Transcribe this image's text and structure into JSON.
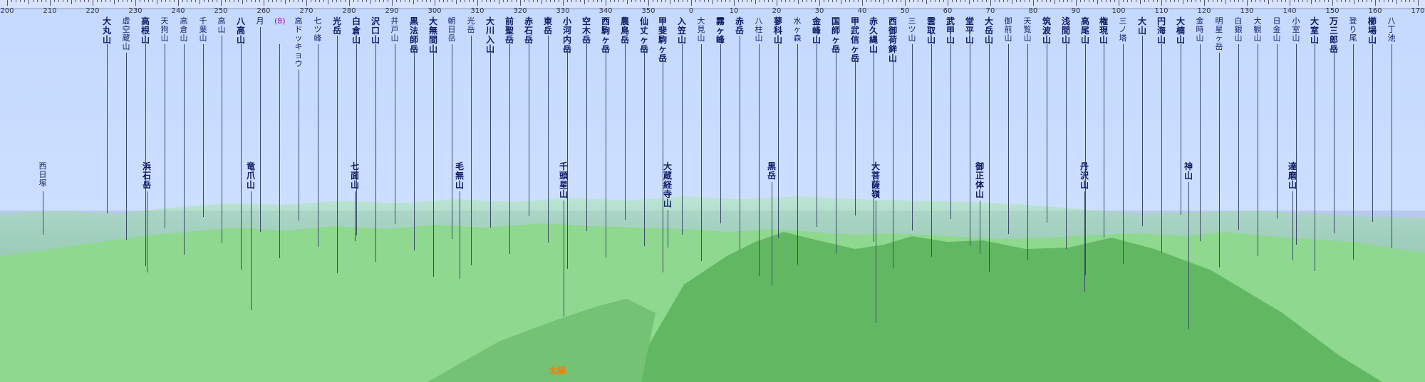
{
  "scale": {
    "degrees": [
      "200",
      "210",
      "220",
      "230",
      "240",
      "250",
      "260",
      "270",
      "280",
      "290",
      "300",
      "310",
      "320",
      "330",
      "340",
      "350",
      "0",
      "10",
      "20",
      "30",
      "40",
      "50",
      "60",
      "70",
      "80",
      "90",
      "100",
      "110",
      "120",
      "130",
      "140",
      "150",
      "160",
      "170"
    ]
  },
  "sun_label": "太陽",
  "peaks": [
    {
      "name": "大丸山",
      "style": "bold"
    },
    {
      "name": "虚空蔵山"
    },
    {
      "name": "高根山",
      "style": "bold"
    },
    {
      "name": "天狗山"
    },
    {
      "name": "高倉山"
    },
    {
      "name": "千葉山"
    },
    {
      "name": "高山"
    },
    {
      "name": "八高山",
      "style": "bold"
    },
    {
      "name": "月"
    },
    {
      "name": "(8)",
      "style": "alt"
    },
    {
      "name": "高ドッキョウ"
    },
    {
      "name": "七ツ峰"
    },
    {
      "name": "光岳",
      "style": "bold"
    },
    {
      "name": "白倉山",
      "style": "bold"
    },
    {
      "name": "沢口山",
      "style": "bold"
    },
    {
      "name": "井戸山"
    },
    {
      "name": "黒法師岳",
      "style": "bold"
    },
    {
      "name": "大無間山",
      "style": "bold"
    },
    {
      "name": "朝日岳"
    },
    {
      "name": "光岳"
    },
    {
      "name": "大川入山",
      "style": "bold"
    },
    {
      "name": "前聖岳",
      "style": "bold"
    },
    {
      "name": "赤石岳",
      "style": "bold"
    },
    {
      "name": "東岳",
      "style": "bold"
    },
    {
      "name": "小河内岳",
      "style": "bold"
    },
    {
      "name": "空木岳",
      "style": "bold"
    },
    {
      "name": "西駒ヶ岳",
      "style": "bold"
    },
    {
      "name": "農鳥岳",
      "style": "bold"
    },
    {
      "name": "仙丈ヶ岳",
      "style": "bold"
    },
    {
      "name": "甲斐駒ヶ岳",
      "style": "bold"
    },
    {
      "name": "入笠山",
      "style": "bold"
    },
    {
      "name": "大見山"
    },
    {
      "name": "霧ヶ峰",
      "style": "bold"
    },
    {
      "name": "赤岳",
      "style": "bold"
    },
    {
      "name": "八柱山"
    },
    {
      "name": "蓼科山",
      "style": "bold"
    },
    {
      "name": "水ヶ森"
    },
    {
      "name": "金峰山",
      "style": "bold"
    },
    {
      "name": "国師ヶ岳",
      "style": "bold"
    },
    {
      "name": "甲武信ヶ岳",
      "style": "bold"
    },
    {
      "name": "赤久縄山",
      "style": "bold"
    },
    {
      "name": "西御荷鉾山",
      "style": "bold"
    },
    {
      "name": "三ツ山"
    },
    {
      "name": "雲取山",
      "style": "bold"
    },
    {
      "name": "武甲山",
      "style": "bold"
    },
    {
      "name": "堂平山",
      "style": "bold"
    },
    {
      "name": "大岳山",
      "style": "bold"
    },
    {
      "name": "御前山"
    },
    {
      "name": "天覧山"
    },
    {
      "name": "筑波山",
      "style": "bold"
    },
    {
      "name": "浅間山",
      "style": "bold"
    },
    {
      "name": "高尾山",
      "style": "bold"
    },
    {
      "name": "権現山",
      "style": "bold"
    },
    {
      "name": "三ノ塔"
    },
    {
      "name": "大山",
      "style": "bold"
    },
    {
      "name": "円海山",
      "style": "bold"
    },
    {
      "name": "大楠山",
      "style": "bold"
    },
    {
      "name": "金時山"
    },
    {
      "name": "明星ヶ岳"
    },
    {
      "name": "白銀山"
    },
    {
      "name": "大観山"
    },
    {
      "name": "日金山"
    },
    {
      "name": "小室山"
    },
    {
      "name": "大室山",
      "style": "bold"
    },
    {
      "name": "万三郎岳",
      "style": "bold"
    },
    {
      "name": "登り尾"
    },
    {
      "name": "櫛場山",
      "style": "bold"
    },
    {
      "name": "八丁池"
    },
    {
      "name": "西日塚"
    },
    {
      "name": "浜石岳",
      "style": "bold"
    },
    {
      "name": "竜爪山",
      "style": "bold"
    },
    {
      "name": "七面山",
      "style": "bold"
    },
    {
      "name": "毛無山",
      "style": "bold"
    },
    {
      "name": "千頭星山",
      "style": "bold"
    },
    {
      "name": "大蔵経寺山",
      "style": "bold"
    },
    {
      "name": "黒岳",
      "style": "bold"
    },
    {
      "name": "大菩薩嶺",
      "style": "bold"
    },
    {
      "name": "御正体山",
      "style": "bold"
    },
    {
      "name": "丹沢山",
      "style": "bold"
    },
    {
      "name": "神山",
      "style": "bold"
    },
    {
      "name": "達磨山",
      "style": "bold"
    }
  ]
}
